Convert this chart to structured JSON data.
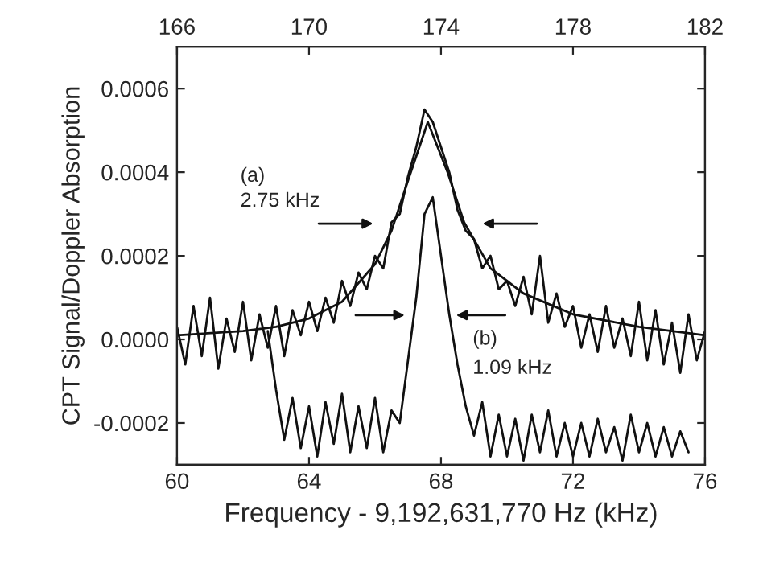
{
  "chart_data": {
    "type": "line",
    "xlabel": "Frequency - 9,192,631,770 Hz (kHz)",
    "ylabel": "CPT Signal/Doppler Absorption",
    "series": [
      {
        "color": "#111111",
        "x": [
          60,
          60.25,
          60.5,
          60.75,
          61,
          61.25,
          61.5,
          61.75,
          62,
          62.25,
          62.5,
          62.75,
          63,
          63.25,
          63.5,
          63.75,
          64,
          64.25,
          64.5,
          64.75,
          65,
          65.25,
          65.5,
          65.75,
          66,
          66.25,
          66.5,
          66.75,
          67,
          67.25,
          67.5,
          67.75,
          68,
          68.25,
          68.5,
          68.75,
          69,
          69.25,
          69.5,
          69.75,
          70,
          70.25,
          70.5,
          70.75,
          71,
          71.25,
          71.5,
          71.75,
          72,
          72.25,
          72.5,
          72.75,
          73,
          73.25,
          73.5,
          73.75,
          74,
          74.25,
          74.5,
          74.75,
          75,
          75.25,
          75.5,
          75.75,
          76
        ],
        "values": [
          3e-05,
          -6e-05,
          8e-05,
          -4e-05,
          0.0001,
          -7e-05,
          5e-05,
          -3e-05,
          9e-05,
          -5e-05,
          6e-05,
          -2e-05,
          8e-05,
          -4e-05,
          7e-05,
          1e-05,
          9e-05,
          2e-05,
          0.0001,
          4e-05,
          0.00014,
          8e-05,
          0.00016,
          0.00012,
          0.0002,
          0.00017,
          0.00028,
          0.0003,
          0.00039,
          0.00046,
          0.00055,
          0.00052,
          0.00046,
          0.0004,
          0.00031,
          0.00026,
          0.00024,
          0.00017,
          0.0002,
          0.00012,
          0.00014,
          8e-05,
          0.00015,
          6e-05,
          0.0002,
          4e-05,
          0.00011,
          3e-05,
          8e-05,
          -2e-05,
          6e-05,
          -3e-05,
          8e-05,
          -2e-05,
          5e-05,
          -4e-05,
          9e-05,
          -5e-05,
          7e-05,
          -6e-05,
          4e-05,
          -8e-05,
          6e-05,
          -5e-05,
          2e-05
        ]
      },
      {
        "color": "#111111",
        "x": [
          60,
          62,
          63,
          64,
          65,
          66,
          66.5,
          67,
          67.6,
          68.2,
          68.7,
          69.5,
          70.5,
          72,
          74,
          76
        ],
        "values": [
          1e-05,
          2e-05,
          3e-05,
          5e-05,
          9e-05,
          0.00018,
          0.00026,
          0.00038,
          0.00052,
          0.0004,
          0.00028,
          0.00017,
          0.00011,
          6e-05,
          3e-05,
          1e-05
        ]
      },
      {
        "color": "#111111",
        "x": [
          62.75,
          63,
          63.25,
          63.5,
          63.75,
          64,
          64.25,
          64.5,
          64.75,
          65,
          65.25,
          65.5,
          65.75,
          66,
          66.25,
          66.5,
          66.75,
          67,
          67.25,
          67.5,
          67.75,
          68,
          68.25,
          68.5,
          68.75,
          69,
          69.25,
          69.5,
          69.75,
          70,
          70.25,
          70.5,
          70.75,
          71,
          71.25,
          71.5,
          71.75,
          72,
          72.25,
          72.5,
          72.75,
          73,
          73.25,
          73.5,
          73.75,
          74,
          74.25,
          74.5,
          74.75,
          75,
          75.25,
          75.5
        ],
        "values": [
          2e-05,
          -0.00012,
          -0.00024,
          -0.00014,
          -0.00026,
          -0.00016,
          -0.00028,
          -0.00015,
          -0.00025,
          -0.00013,
          -0.00027,
          -0.00016,
          -0.00026,
          -0.00014,
          -0.00027,
          -0.00017,
          -0.0002,
          -5e-05,
          0.0001,
          0.0003,
          0.00034,
          0.0002,
          6e-05,
          -6e-05,
          -0.00016,
          -0.00023,
          -0.00015,
          -0.00028,
          -0.00018,
          -0.00028,
          -0.00019,
          -0.00029,
          -0.00018,
          -0.00027,
          -0.00017,
          -0.00028,
          -0.0002,
          -0.00028,
          -0.0002,
          -0.00028,
          -0.00019,
          -0.00027,
          -0.00021,
          -0.00029,
          -0.00018,
          -0.00027,
          -0.0002,
          -0.00028,
          -0.00021,
          -0.00028,
          -0.00022,
          -0.00027
        ]
      }
    ],
    "annotations": [
      "(a)",
      "2.75 kHz",
      "(b)",
      "1.09 kHz"
    ],
    "xlim": [
      60,
      76
    ],
    "xticks": [
      60,
      64,
      68,
      72,
      76
    ],
    "x2lim": [
      166,
      182
    ],
    "x2ticks": [
      166,
      170,
      174,
      178,
      182
    ],
    "ylim": [
      -0.0003,
      0.0007
    ],
    "yticks": [
      {
        "value": -0.0002,
        "label": "-0.0002"
      },
      {
        "value": 0,
        "label": "0.0000"
      },
      {
        "value": 0.0002,
        "label": "0.0002"
      },
      {
        "value": 0.0004,
        "label": "0.0004"
      },
      {
        "value": 0.0006,
        "label": "0.0006"
      }
    ],
    "grid": false,
    "legend": false,
    "marker": "none",
    "line_style": "solid"
  }
}
